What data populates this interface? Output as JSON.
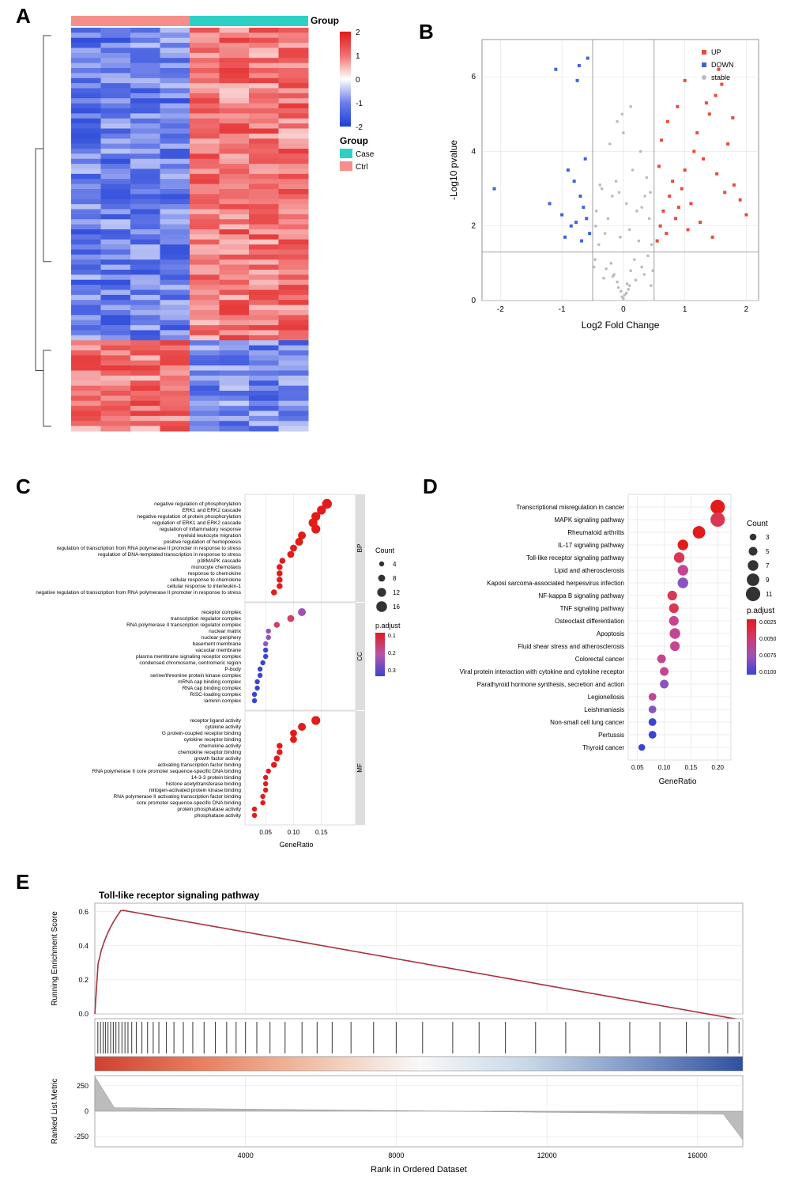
{
  "panels": {
    "A": "A",
    "B": "B",
    "C": "C",
    "D": "D",
    "E": "E"
  },
  "heatmap": {
    "group_label": "Group",
    "groups": [
      "Case",
      "Ctrl"
    ],
    "group_colors": {
      "Case": "#2dd0c5",
      "Ctrl": "#f68f8a"
    },
    "scale": {
      "min": -2,
      "max": 2,
      "ticks": [
        -2,
        -1,
        0,
        1,
        2
      ]
    },
    "scale_colors": [
      "#1e3fd8",
      "#6b7fe8",
      "#ffffff",
      "#f07070",
      "#e21b1b"
    ],
    "cols": 8,
    "group_assignment": [
      0,
      0,
      0,
      0,
      1,
      1,
      1,
      1
    ],
    "rows": 80,
    "cluster_split": 62,
    "seed": 1
  },
  "volcano": {
    "xlabel": "Log2 Fold Change",
    "ylabel": "-Log10 pvalue",
    "xlim": [
      -2.3,
      2.2
    ],
    "ylim": [
      0,
      7
    ],
    "xticks": [
      -2,
      -1,
      0,
      1,
      2
    ],
    "yticks": [
      0,
      2,
      4,
      6
    ],
    "threshold_x": [
      -0.5,
      0.5
    ],
    "threshold_y": 1.3,
    "legend": [
      {
        "label": "UP",
        "color": "#e74c3c",
        "shape": "square"
      },
      {
        "label": "DOWN",
        "color": "#4263d8",
        "shape": "square"
      },
      {
        "label": "stable",
        "color": "#bbbbbb",
        "shape": "circle"
      }
    ],
    "colors": {
      "up": "#e74c3c",
      "down": "#4263d8",
      "stable": "#bbbbbb"
    },
    "stable_points": [
      [
        -0.02,
        0.1
      ],
      [
        0.05,
        0.2
      ],
      [
        -0.1,
        0.5
      ],
      [
        0.1,
        0.4
      ],
      [
        -0.15,
        0.7
      ],
      [
        0.12,
        0.8
      ],
      [
        -0.2,
        1.0
      ],
      [
        0.18,
        1.1
      ],
      [
        -0.3,
        1.8
      ],
      [
        0.25,
        1.6
      ],
      [
        0.0,
        0.05
      ],
      [
        0.08,
        0.3
      ],
      [
        -0.08,
        0.35
      ],
      [
        -0.25,
        2.2
      ],
      [
        0.3,
        2.5
      ],
      [
        -0.35,
        3.0
      ],
      [
        0.35,
        2.8
      ],
      [
        -0.4,
        1.5
      ],
      [
        0.4,
        1.2
      ],
      [
        -0.18,
        2.8
      ],
      [
        0.22,
        2.4
      ],
      [
        0.02,
        0.15
      ],
      [
        -0.04,
        0.25
      ],
      [
        0.06,
        0.45
      ],
      [
        -0.45,
        2.0
      ],
      [
        0.42,
        2.2
      ],
      [
        0.15,
        3.5
      ],
      [
        -0.12,
        3.2
      ],
      [
        0.28,
        4.0
      ],
      [
        -0.22,
        4.2
      ],
      [
        0.1,
        1.9
      ],
      [
        -0.05,
        1.7
      ],
      [
        0.3,
        0.9
      ],
      [
        -0.28,
        0.85
      ],
      [
        -0.32,
        0.6
      ],
      [
        0.34,
        0.7
      ],
      [
        0.05,
        2.6
      ],
      [
        -0.07,
        2.9
      ],
      [
        0.2,
        0.55
      ],
      [
        -0.17,
        0.65
      ],
      [
        0.38,
        3.3
      ],
      [
        -0.38,
        3.1
      ],
      [
        0.0,
        4.5
      ],
      [
        -0.02,
        5.0
      ],
      [
        0.45,
        0.4
      ],
      [
        0.48,
        0.8
      ],
      [
        -0.48,
        0.9
      ],
      [
        -0.46,
        1.1
      ],
      [
        0.46,
        1.5
      ],
      [
        -0.44,
        2.4
      ],
      [
        0.44,
        2.9
      ],
      [
        0.12,
        5.2
      ],
      [
        -0.1,
        4.8
      ]
    ],
    "down_points": [
      [
        -0.55,
        1.8
      ],
      [
        -0.6,
        2.2
      ],
      [
        -0.65,
        2.5
      ],
      [
        -0.7,
        2.8
      ],
      [
        -0.72,
        6.3
      ],
      [
        -0.58,
        6.5
      ],
      [
        -0.75,
        5.9
      ],
      [
        -0.8,
        3.2
      ],
      [
        -0.85,
        2.0
      ],
      [
        -0.9,
        3.5
      ],
      [
        -1.0,
        2.3
      ],
      [
        -1.1,
        6.2
      ],
      [
        -1.2,
        2.6
      ],
      [
        -0.62,
        3.8
      ],
      [
        -0.68,
        1.6
      ],
      [
        -2.1,
        3.0
      ],
      [
        -0.77,
        2.1
      ],
      [
        -0.95,
        1.7
      ]
    ],
    "up_points": [
      [
        0.55,
        1.6
      ],
      [
        0.6,
        2.0
      ],
      [
        0.65,
        2.4
      ],
      [
        0.7,
        1.8
      ],
      [
        0.75,
        2.8
      ],
      [
        0.8,
        3.2
      ],
      [
        0.85,
        2.2
      ],
      [
        0.9,
        2.5
      ],
      [
        0.95,
        3.0
      ],
      [
        1.0,
        3.5
      ],
      [
        1.05,
        1.9
      ],
      [
        1.1,
        2.6
      ],
      [
        1.15,
        4.0
      ],
      [
        1.2,
        4.5
      ],
      [
        1.25,
        2.1
      ],
      [
        1.3,
        3.8
      ],
      [
        1.4,
        5.0
      ],
      [
        1.5,
        5.5
      ],
      [
        1.55,
        6.2
      ],
      [
        1.6,
        5.8
      ],
      [
        1.7,
        4.2
      ],
      [
        1.8,
        3.1
      ],
      [
        1.9,
        2.7
      ],
      [
        2.0,
        2.3
      ],
      [
        0.72,
        4.8
      ],
      [
        0.88,
        5.2
      ],
      [
        1.35,
        5.3
      ],
      [
        1.45,
        1.7
      ],
      [
        1.65,
        2.9
      ],
      [
        1.78,
        4.9
      ],
      [
        0.58,
        3.6
      ],
      [
        0.62,
        4.3
      ],
      [
        1.0,
        5.9
      ],
      [
        1.52,
        3.4
      ]
    ]
  },
  "go": {
    "xlabel": "GeneRatio",
    "xticks": [
      0.05,
      0.1,
      0.15
    ],
    "facets": [
      "BP",
      "CC",
      "MF"
    ],
    "count_legend": {
      "label": "Count",
      "sizes": [
        4,
        8,
        12,
        16
      ]
    },
    "padjust_legend": {
      "label": "p.adjust",
      "values": [
        0.1,
        0.2,
        0.3
      ],
      "colors": [
        "#e21b1b",
        "#b555aa",
        "#3b44d0"
      ]
    },
    "terms_bp": [
      {
        "label": "negative regulation of phosphorylation",
        "x": 0.16,
        "count": 14,
        "padj": 0.02
      },
      {
        "label": "ERK1 and ERK2 cascade",
        "x": 0.15,
        "count": 12,
        "padj": 0.02
      },
      {
        "label": "negative regulation of protein phosphorylation",
        "x": 0.14,
        "count": 12,
        "padj": 0.02
      },
      {
        "label": "regulation of ERK1 and ERK2 cascade",
        "x": 0.135,
        "count": 12,
        "padj": 0.02
      },
      {
        "label": "regulation of inflammatory response",
        "x": 0.14,
        "count": 12,
        "padj": 0.02
      },
      {
        "label": "myeloid leukocyte migration",
        "x": 0.115,
        "count": 10,
        "padj": 0.02
      },
      {
        "label": "positive regulation of hemopoiesis",
        "x": 0.11,
        "count": 10,
        "padj": 0.02
      },
      {
        "label": "regulation of transcription from RNA polymerase II promoter in response to stress",
        "x": 0.1,
        "count": 8,
        "padj": 0.02
      },
      {
        "label": "regulation of DNA-templated transcription in response to stress",
        "x": 0.095,
        "count": 8,
        "padj": 0.02
      },
      {
        "label": "p38MAPK cascade",
        "x": 0.08,
        "count": 6,
        "padj": 0.02
      },
      {
        "label": "monocyte chemotaxis",
        "x": 0.075,
        "count": 6,
        "padj": 0.02
      },
      {
        "label": "response to chemokine",
        "x": 0.075,
        "count": 6,
        "padj": 0.02
      },
      {
        "label": "cellular response to chemokine",
        "x": 0.075,
        "count": 6,
        "padj": 0.02
      },
      {
        "label": "cellular response to interleukin-1",
        "x": 0.075,
        "count": 6,
        "padj": 0.02
      },
      {
        "label": "negative regulation of transcription from RNA polymerase II promoter in response to stress",
        "x": 0.065,
        "count": 6,
        "padj": 0.02
      }
    ],
    "terms_cc": [
      {
        "label": "receptor complex",
        "x": 0.115,
        "count": 10,
        "padj": 0.22
      },
      {
        "label": "transcription regulator complex",
        "x": 0.095,
        "count": 8,
        "padj": 0.12
      },
      {
        "label": "RNA polymerase II transcription regulator complex",
        "x": 0.07,
        "count": 6,
        "padj": 0.12
      },
      {
        "label": "nuclear matrix",
        "x": 0.055,
        "count": 4,
        "padj": 0.22
      },
      {
        "label": "nuclear periphery",
        "x": 0.055,
        "count": 4,
        "padj": 0.22
      },
      {
        "label": "basement membrane",
        "x": 0.05,
        "count": 4,
        "padj": 0.22
      },
      {
        "label": "vacuolar membrane",
        "x": 0.05,
        "count": 4,
        "padj": 0.3
      },
      {
        "label": "plasma membrane signaling receptor complex",
        "x": 0.05,
        "count": 4,
        "padj": 0.3
      },
      {
        "label": "condensed chromosome, centromeric region",
        "x": 0.045,
        "count": 4,
        "padj": 0.3
      },
      {
        "label": "P-body",
        "x": 0.04,
        "count": 4,
        "padj": 0.3
      },
      {
        "label": "serine/threonine protein kinase complex",
        "x": 0.04,
        "count": 4,
        "padj": 0.3
      },
      {
        "label": "mRNA cap binding complex",
        "x": 0.035,
        "count": 4,
        "padj": 0.3
      },
      {
        "label": "RNA cap binding complex",
        "x": 0.035,
        "count": 4,
        "padj": 0.3
      },
      {
        "label": "RISC-loading complex",
        "x": 0.03,
        "count": 4,
        "padj": 0.3
      },
      {
        "label": "laminin complex",
        "x": 0.03,
        "count": 4,
        "padj": 0.3
      }
    ],
    "terms_mf": [
      {
        "label": "receptor ligand activity",
        "x": 0.14,
        "count": 12,
        "padj": 0.02
      },
      {
        "label": "cytokine activity",
        "x": 0.115,
        "count": 10,
        "padj": 0.02
      },
      {
        "label": "G protein-coupled receptor binding",
        "x": 0.1,
        "count": 8,
        "padj": 0.02
      },
      {
        "label": "cytokine receptor binding",
        "x": 0.1,
        "count": 8,
        "padj": 0.02
      },
      {
        "label": "chemokine activity",
        "x": 0.075,
        "count": 6,
        "padj": 0.02
      },
      {
        "label": "chemokine receptor binding",
        "x": 0.075,
        "count": 6,
        "padj": 0.02
      },
      {
        "label": "growth factor activity",
        "x": 0.07,
        "count": 6,
        "padj": 0.02
      },
      {
        "label": "activating transcription factor binding",
        "x": 0.065,
        "count": 6,
        "padj": 0.02
      },
      {
        "label": "RNA polymerase II core promoter sequence-specific DNA binding",
        "x": 0.055,
        "count": 4,
        "padj": 0.02
      },
      {
        "label": "14-3-3 protein binding",
        "x": 0.05,
        "count": 4,
        "padj": 0.02
      },
      {
        "label": "histone acetyltransferase binding",
        "x": 0.05,
        "count": 4,
        "padj": 0.02
      },
      {
        "label": "mitogen-activated protein kinase binding",
        "x": 0.05,
        "count": 4,
        "padj": 0.02
      },
      {
        "label": "RNA polymerase II activating transcription factor binding",
        "x": 0.045,
        "count": 4,
        "padj": 0.02
      },
      {
        "label": "core promoter sequence-specific DNA binding",
        "x": 0.045,
        "count": 4,
        "padj": 0.02
      },
      {
        "label": "protein phosphatase activity",
        "x": 0.03,
        "count": 4,
        "padj": 0.02
      },
      {
        "label": "phosphatase activity",
        "x": 0.03,
        "count": 4,
        "padj": 0.02
      }
    ]
  },
  "kegg": {
    "xlabel": "GeneRatio",
    "xticks": [
      0.05,
      0.1,
      0.15,
      0.2
    ],
    "count_legend": {
      "label": "Count",
      "sizes": [
        3,
        5,
        7,
        9,
        11
      ]
    },
    "padjust_legend": {
      "label": "p.adjust",
      "values": [
        0.0025,
        0.005,
        0.0075,
        0.01
      ],
      "colors": [
        "#e21b1b",
        "#d03a6a",
        "#9b52b8",
        "#3b44d0"
      ]
    },
    "terms": [
      {
        "label": "Transcriptional misregulation in cancer",
        "x": 0.2,
        "count": 11,
        "padj": 0.002
      },
      {
        "label": "MAPK signaling pathway",
        "x": 0.2,
        "count": 11,
        "padj": 0.003
      },
      {
        "label": "Rheumatoid arthritis",
        "x": 0.165,
        "count": 9,
        "padj": 0.002
      },
      {
        "label": "IL-17 signaling pathway",
        "x": 0.135,
        "count": 7,
        "padj": 0.002
      },
      {
        "label": "Toll-like receptor signaling pathway",
        "x": 0.128,
        "count": 7,
        "padj": 0.003
      },
      {
        "label": "Lipid and atherosclerosis",
        "x": 0.135,
        "count": 7,
        "padj": 0.006
      },
      {
        "label": "Kaposi sarcoma-associated herpesvirus infection",
        "x": 0.135,
        "count": 7,
        "padj": 0.007
      },
      {
        "label": "NF-kappa B signaling pathway",
        "x": 0.115,
        "count": 6,
        "padj": 0.003
      },
      {
        "label": "TNF signaling pathway",
        "x": 0.118,
        "count": 6,
        "padj": 0.003
      },
      {
        "label": "Osteoclast differentiation",
        "x": 0.118,
        "count": 6,
        "padj": 0.005
      },
      {
        "label": "Apoptosis",
        "x": 0.12,
        "count": 7,
        "padj": 0.006
      },
      {
        "label": "Fluid shear stress and atherosclerosis",
        "x": 0.12,
        "count": 6,
        "padj": 0.006
      },
      {
        "label": "Colorectal cancer",
        "x": 0.095,
        "count": 5,
        "padj": 0.005
      },
      {
        "label": "Viral protein interaction with cytokine and cytokine receptor",
        "x": 0.1,
        "count": 5,
        "padj": 0.006
      },
      {
        "label": "Parathyroid hormone synthesis, secretion and action",
        "x": 0.1,
        "count": 5,
        "padj": 0.007
      },
      {
        "label": "Legionellosis",
        "x": 0.078,
        "count": 4,
        "padj": 0.006
      },
      {
        "label": "Leishmaniasis",
        "x": 0.078,
        "count": 4,
        "padj": 0.008
      },
      {
        "label": "Non-small cell lung cancer",
        "x": 0.078,
        "count": 4,
        "padj": 0.009
      },
      {
        "label": "Pertussis",
        "x": 0.078,
        "count": 4,
        "padj": 0.01
      },
      {
        "label": "Thyroid cancer",
        "x": 0.058,
        "count": 3,
        "padj": 0.011
      }
    ]
  },
  "gsea": {
    "title": "Toll-like receptor signaling pathway",
    "ylabel1": "Running Enrichment Score",
    "ylabel2": "Ranked List Metric",
    "xlabel": "Rank in Ordered Dataset",
    "xticks": [
      4000,
      8000,
      12000,
      16000
    ],
    "yticks1": [
      0.0,
      0.2,
      0.4,
      0.6
    ],
    "yticks2": [
      -250,
      0,
      250
    ],
    "line_color": "#a8323e",
    "n_genes": 17200,
    "peak_rank": 700,
    "peak_score": 0.61,
    "hits": [
      80,
      150,
      220,
      280,
      350,
      420,
      490,
      560,
      640,
      720,
      800,
      880,
      980,
      1100,
      1250,
      1400,
      1550,
      1700,
      1900,
      2100,
      2350,
      2600,
      2900,
      3200,
      3500,
      3750,
      4000,
      4300,
      4650,
      5050,
      5500,
      5900,
      6300,
      6800,
      7400,
      8000,
      8700,
      9500,
      10200,
      10900,
      11700,
      12500,
      13400,
      14200,
      15000,
      15700,
      16300,
      16800,
      17100
    ],
    "gradient_colors": [
      "#d04030",
      "#e88060",
      "#f0c0a8",
      "#f8f8f8",
      "#c8d8e8",
      "#8098c8",
      "#3050a0"
    ],
    "metric_min": -280,
    "metric_max": 340
  }
}
